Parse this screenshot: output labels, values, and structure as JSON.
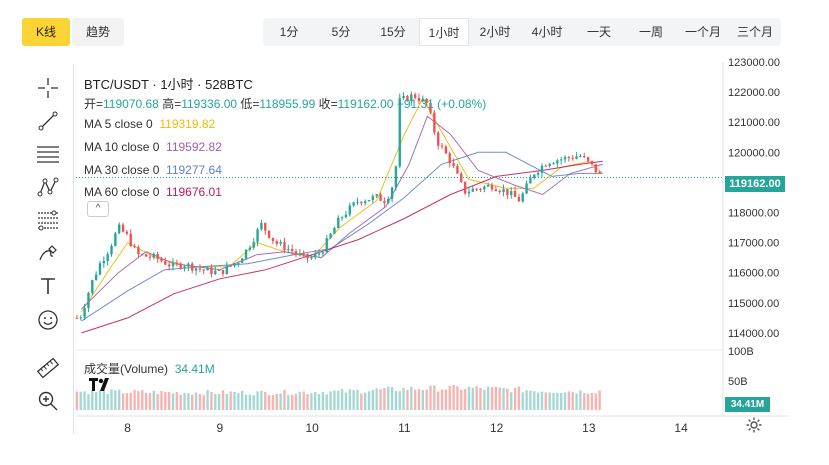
{
  "toolbar": {
    "kline_label": "K线",
    "trend_label": "趋势",
    "intervals": [
      "1分",
      "5分",
      "15分",
      "1小时",
      "2小时",
      "4小时",
      "一天",
      "一周",
      "一个月",
      "三个月"
    ],
    "active_interval": "1小时"
  },
  "legend": {
    "title": "BTC/USDT · 1小时 · 528BTC",
    "open_label": "开=",
    "open": "119070.68",
    "high_label": "高=",
    "high": "119336.00",
    "low_label": "低=",
    "low": "118955.99",
    "close_label": "收=",
    "close": "119162.00",
    "change": "+91.31 (+0.08%)",
    "ma": [
      {
        "label": "MA 5 close 0",
        "value": "119319.82",
        "color": "#f0b90b"
      },
      {
        "label": "MA 10 close 0",
        "value": "119592.82",
        "color": "#9c5fb5"
      },
      {
        "label": "MA 30 close 0",
        "value": "119277.64",
        "color": "#5c7fcc"
      },
      {
        "label": "MA 60 close 0",
        "value": "119676.01",
        "color": "#c2185b"
      }
    ],
    "volume_label": "成交量(Volume)",
    "volume_value": "34.41M",
    "collapse_icon": "^"
  },
  "colors": {
    "up": "#26a69a",
    "down": "#ef5350",
    "vol_up": "#a6d8d3",
    "vol_down": "#f5b3b1",
    "accent": "#fcd535"
  },
  "price_tag": "119162.00",
  "volume_tag": "34.41M",
  "chart_data": {
    "type": "candlestick",
    "title": "BTC/USDT · 1小时 · 528BTC",
    "price_ylim": [
      113500,
      123000
    ],
    "price_ticks": [
      "123000.00",
      "122000.00",
      "121000.00",
      "120000.00",
      "119000.00",
      "118000.00",
      "117000.00",
      "116000.00",
      "115000.00",
      "114000.00"
    ],
    "volume_ticks": [
      "100B",
      "50B"
    ],
    "x_ticks": [
      "8",
      "9",
      "10",
      "11",
      "12",
      "13",
      "14"
    ],
    "x_tick_positions": [
      0.5,
      1.5,
      2.5,
      3.5,
      4.5,
      5.5,
      6.5
    ],
    "x_range": [
      -0.06,
      6.9
    ],
    "close_anchors": [
      [
        -0.05,
        114500
      ],
      [
        0.0,
        114600
      ],
      [
        0.1,
        115600
      ],
      [
        0.2,
        116300
      ],
      [
        0.3,
        116800
      ],
      [
        0.4,
        117500
      ],
      [
        0.5,
        117200
      ],
      [
        0.6,
        116600
      ],
      [
        0.8,
        116500
      ],
      [
        1.0,
        116200
      ],
      [
        1.1,
        116300
      ],
      [
        1.3,
        116100
      ],
      [
        1.5,
        116000
      ],
      [
        1.7,
        116400
      ],
      [
        1.8,
        116800
      ],
      [
        1.95,
        117600
      ],
      [
        2.1,
        117000
      ],
      [
        2.3,
        116700
      ],
      [
        2.4,
        116500
      ],
      [
        2.5,
        116500
      ],
      [
        2.6,
        116700
      ],
      [
        2.8,
        117800
      ],
      [
        3.0,
        118400
      ],
      [
        3.2,
        118500
      ],
      [
        3.3,
        118400
      ],
      [
        3.4,
        119100
      ],
      [
        3.45,
        121700
      ],
      [
        3.6,
        121900
      ],
      [
        3.75,
        121600
      ],
      [
        3.85,
        120400
      ],
      [
        4.0,
        119700
      ],
      [
        4.15,
        118700
      ],
      [
        4.3,
        118800
      ],
      [
        4.45,
        118900
      ],
      [
        4.6,
        118700
      ],
      [
        4.75,
        118400
      ],
      [
        4.9,
        119300
      ],
      [
        5.05,
        119700
      ],
      [
        5.25,
        119800
      ],
      [
        5.4,
        119900
      ],
      [
        5.55,
        119500
      ],
      [
        5.65,
        119100
      ]
    ],
    "ma": [
      {
        "name": "MA 5 close 0",
        "points": [
          [
            0.0,
            114700
          ],
          [
            0.3,
            116100
          ],
          [
            0.5,
            117000
          ],
          [
            0.8,
            116500
          ],
          [
            1.2,
            116200
          ],
          [
            1.6,
            116200
          ],
          [
            1.9,
            117000
          ],
          [
            2.2,
            116700
          ],
          [
            2.5,
            116500
          ],
          [
            2.8,
            117500
          ],
          [
            3.2,
            118400
          ],
          [
            3.5,
            120600
          ],
          [
            3.7,
            121800
          ],
          [
            3.9,
            120700
          ],
          [
            4.2,
            119100
          ],
          [
            4.6,
            118800
          ],
          [
            4.9,
            118800
          ],
          [
            5.2,
            119500
          ],
          [
            5.5,
            119700
          ],
          [
            5.65,
            119300
          ]
        ]
      },
      {
        "name": "MA 10 close 0",
        "points": [
          [
            0.0,
            114800
          ],
          [
            0.4,
            116000
          ],
          [
            0.7,
            116700
          ],
          [
            1.0,
            116300
          ],
          [
            1.5,
            116100
          ],
          [
            1.9,
            116600
          ],
          [
            2.2,
            116700
          ],
          [
            2.6,
            116500
          ],
          [
            2.9,
            117300
          ],
          [
            3.3,
            118200
          ],
          [
            3.55,
            119600
          ],
          [
            3.75,
            121200
          ],
          [
            4.0,
            120600
          ],
          [
            4.3,
            119400
          ],
          [
            4.7,
            118900
          ],
          [
            5.0,
            118600
          ],
          [
            5.3,
            119300
          ],
          [
            5.65,
            119600
          ]
        ]
      },
      {
        "name": "MA 30 close 0",
        "points": [
          [
            0.0,
            114400
          ],
          [
            0.5,
            115400
          ],
          [
            0.9,
            116100
          ],
          [
            1.3,
            116200
          ],
          [
            1.8,
            116300
          ],
          [
            2.3,
            116600
          ],
          [
            2.7,
            116800
          ],
          [
            3.1,
            117600
          ],
          [
            3.5,
            118500
          ],
          [
            3.9,
            119600
          ],
          [
            4.3,
            120000
          ],
          [
            4.6,
            120000
          ],
          [
            4.85,
            119600
          ],
          [
            5.1,
            119200
          ],
          [
            5.4,
            119300
          ],
          [
            5.65,
            119300
          ]
        ]
      },
      {
        "name": "MA 60 close 0",
        "points": [
          [
            0.0,
            114000
          ],
          [
            0.5,
            114500
          ],
          [
            1.0,
            115300
          ],
          [
            1.5,
            115800
          ],
          [
            2.0,
            116100
          ],
          [
            2.5,
            116600
          ],
          [
            3.0,
            117100
          ],
          [
            3.5,
            117800
          ],
          [
            4.0,
            118600
          ],
          [
            4.5,
            119200
          ],
          [
            5.0,
            119400
          ],
          [
            5.4,
            119600
          ],
          [
            5.65,
            119700
          ]
        ]
      }
    ],
    "volume_max": 100,
    "volume_profile": [
      [
        0,
        32
      ],
      [
        1,
        30
      ],
      [
        2,
        30
      ],
      [
        2.9,
        32
      ],
      [
        3.1,
        34
      ],
      [
        3.6,
        37
      ],
      [
        4.2,
        38
      ],
      [
        4.6,
        36
      ],
      [
        5.0,
        33
      ],
      [
        5.4,
        32
      ],
      [
        5.65,
        33
      ]
    ]
  }
}
